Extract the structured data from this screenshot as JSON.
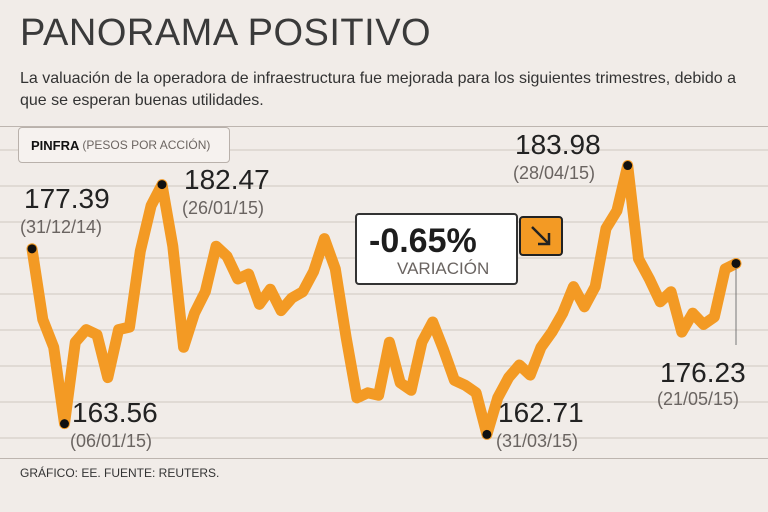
{
  "header": {
    "title": "PANORAMA POSITIVO",
    "subtitle": "La valuación de la operadora de infraestructura fue mejorada para los siguientes trimestres, debido a que se esperan buenas utilidades."
  },
  "legend": {
    "ticker": "PINFRA",
    "unit": "(PESOS POR ACCIÓN)"
  },
  "variation": {
    "value": "-0.65%",
    "label": "VARIACIÓN",
    "icon": "arrow-down-right-icon"
  },
  "source": "GRÁFICO: EE. FUENTE: REUTERS.",
  "colors": {
    "line": "#f39a24",
    "background": "#f1ece8",
    "grid": "#cfc7c1"
  },
  "chart_data": {
    "type": "line",
    "title": "PINFRA (PESOS POR ACCIÓN)",
    "series": [
      {
        "name": "PINFRA",
        "values": [
          177.39,
          171.8,
          169.6,
          163.56,
          170.0,
          171.0,
          170.6,
          167.2,
          171.0,
          171.2,
          177.2,
          180.8,
          182.47,
          177.6,
          169.6,
          172.3,
          174.0,
          177.6,
          176.8,
          175.0,
          175.4,
          173.0,
          174.2,
          172.5,
          173.5,
          174.0,
          175.6,
          178.2,
          175.8,
          170.4,
          165.6,
          166.0,
          165.8,
          170.0,
          166.8,
          166.2,
          170.0,
          171.6,
          169.4,
          167.0,
          166.6,
          166.0,
          162.71,
          165.6,
          167.2,
          168.2,
          167.4,
          169.6,
          170.8,
          172.3,
          174.4,
          172.8,
          174.4,
          179.0,
          180.4,
          183.98,
          176.6,
          175.0,
          173.2,
          174.0,
          170.8,
          172.3,
          171.4,
          172.0,
          175.8,
          176.23
        ]
      }
    ],
    "annotations": [
      {
        "label": "177.39",
        "date": "(31/12/14)",
        "value": 177.39
      },
      {
        "label": "163.56",
        "date": "(06/01/15)",
        "value": 163.56
      },
      {
        "label": "182.47",
        "date": "(26/01/15)",
        "value": 182.47
      },
      {
        "label": "162.71",
        "date": "(31/03/15)",
        "value": 162.71
      },
      {
        "label": "183.98",
        "date": "(28/04/15)",
        "value": 183.98
      },
      {
        "label": "176.23",
        "date": "(21/05/15)",
        "value": 176.23
      }
    ],
    "ylim": [
      161,
      186
    ],
    "grid": true,
    "xlabel": "",
    "ylabel": ""
  }
}
